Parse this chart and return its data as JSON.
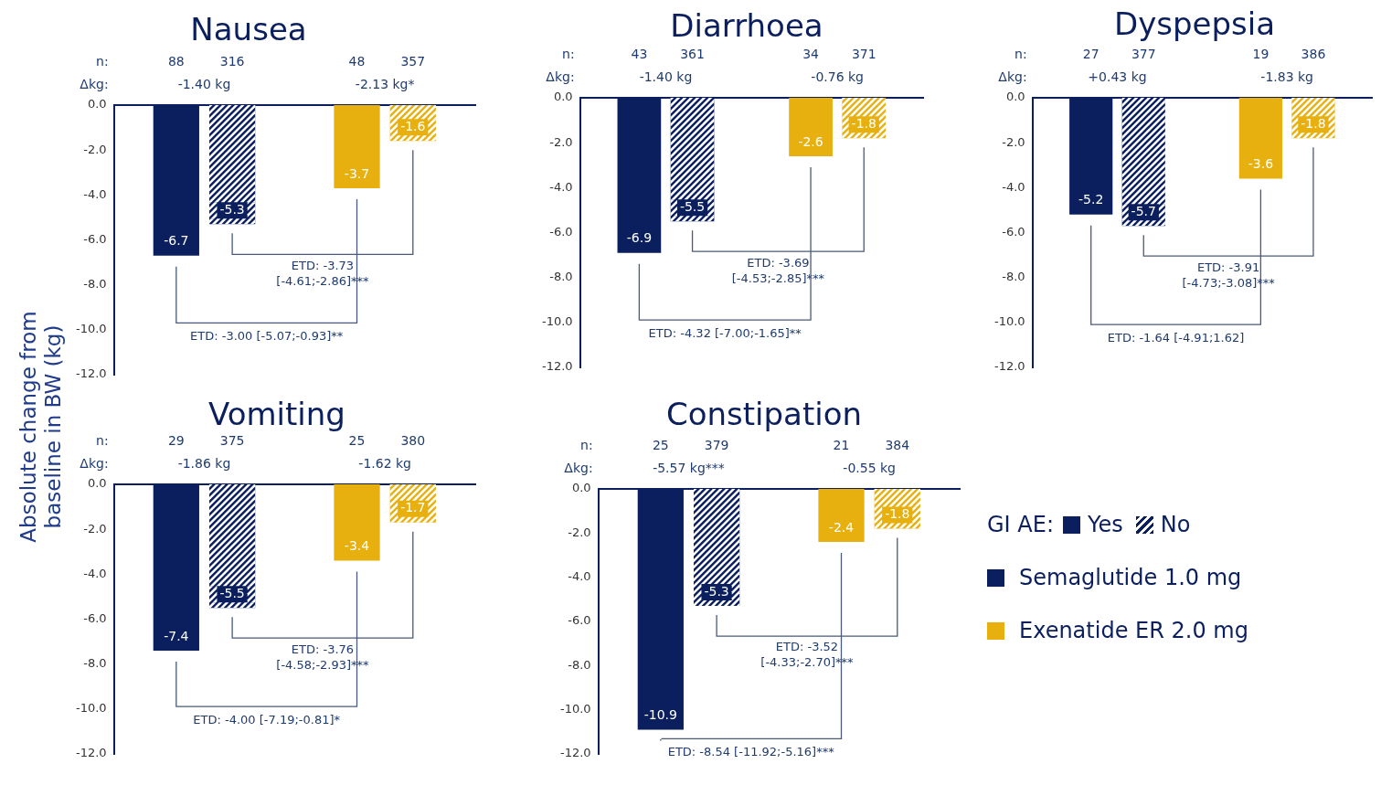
{
  "chart_data": [
    {
      "type": "bar",
      "title": "Nausea",
      "ylabel": "Absolute change from baseline in BW (kg)",
      "categories": [
        null,
        null
      ],
      "series": [
        {
          "colors": [
            "#0b1f5e",
            "#e8b00f"
          ],
          "values": [
            -6.7,
            -3.7
          ]
        },
        {
          "colors": [
            "#0b1f5e",
            "#e8b00f"
          ],
          "values": [
            -5.3,
            -1.6
          ]
        }
      ],
      "ylim": [
        -12,
        0
      ],
      "yticks": [
        {
          "value": 0,
          "label": "0.0"
        },
        {
          "value": -2,
          "label": "-2.0"
        },
        {
          "value": -4,
          "label": "-4.0"
        },
        {
          "value": -6,
          "label": "-6.0"
        },
        {
          "value": -8,
          "label": "-8.0"
        },
        {
          "value": -10,
          "label": "-10.0"
        },
        {
          "value": -12,
          "label": "-12.0"
        }
      ],
      "tick_labels": "y",
      "data_labels": true,
      "annotations": [
        "n:",
        "88",
        "316",
        "48",
        "357",
        "Δkg:",
        "-1.40 kg",
        "-2.13 kg*",
        "ETD: -3.73\n[-4.61;-2.86]***",
        "ETD: -3.00 [-5.07;-0.93]**"
      ]
    },
    {
      "type": "bar",
      "title": "Diarrhoea",
      "categories": [
        null,
        null
      ],
      "series": [
        {
          "colors": [
            "#0b1f5e",
            "#e8b00f"
          ],
          "values": [
            -6.9,
            -2.6
          ]
        },
        {
          "colors": [
            "#0b1f5e",
            "#e8b00f"
          ],
          "values": [
            -5.5,
            -1.8
          ]
        }
      ],
      "ylim": [
        -12,
        0
      ],
      "yticks": [
        {
          "value": 0,
          "label": "0.0"
        },
        {
          "value": -2,
          "label": "-2.0"
        },
        {
          "value": -4,
          "label": "-4.0"
        },
        {
          "value": -6,
          "label": "-6.0"
        },
        {
          "value": -8,
          "label": "-8.0"
        },
        {
          "value": -10,
          "label": "-10.0"
        },
        {
          "value": -12,
          "label": "-12.0"
        }
      ],
      "tick_labels": "y",
      "data_labels": true,
      "annotations": [
        "n:",
        "43",
        "361",
        "34",
        "371",
        "Δkg:",
        "-1.40 kg",
        "-0.76 kg",
        "ETD: -3.69\n[-4.53;-2.85]***",
        "ETD: -4.32 [-7.00;-1.65]**"
      ]
    },
    {
      "type": "bar",
      "title": "Dyspepsia",
      "categories": [
        null,
        null
      ],
      "series": [
        {
          "colors": [
            "#0b1f5e",
            "#e8b00f"
          ],
          "values": [
            -5.2,
            -3.6
          ]
        },
        {
          "colors": [
            "#0b1f5e",
            "#e8b00f"
          ],
          "values": [
            -5.7,
            -1.8
          ]
        }
      ],
      "ylim": [
        -12,
        0
      ],
      "yticks": [
        {
          "value": 0,
          "label": "0.0"
        },
        {
          "value": -2,
          "label": "-2.0"
        },
        {
          "value": -4,
          "label": "-4.0"
        },
        {
          "value": -6,
          "label": "-6.0"
        },
        {
          "value": -8,
          "label": "-8.0"
        },
        {
          "value": -10,
          "label": "-10.0"
        },
        {
          "value": -12,
          "label": "-12.0"
        }
      ],
      "tick_labels": "y",
      "data_labels": true,
      "annotations": [
        "n:",
        "27",
        "377",
        "19",
        "386",
        "Δkg:",
        "+0.43 kg",
        "-1.83 kg",
        "ETD: -3.91\n[-4.73;-3.08]***",
        "ETD: -1.64 [-4.91;1.62]"
      ]
    },
    {
      "type": "bar",
      "title": "Vomiting",
      "categories": [
        null,
        null
      ],
      "series": [
        {
          "colors": [
            "#0b1f5e",
            "#e8b00f"
          ],
          "values": [
            -7.4,
            -3.4
          ]
        },
        {
          "colors": [
            "#0b1f5e",
            "#e8b00f"
          ],
          "values": [
            -5.5,
            -1.7
          ]
        }
      ],
      "ylim": [
        -12,
        0
      ],
      "yticks": [
        {
          "value": 0,
          "label": "0.0"
        },
        {
          "value": -2,
          "label": "-2.0"
        },
        {
          "value": -4,
          "label": "-4.0"
        },
        {
          "value": -6,
          "label": "-6.0"
        },
        {
          "value": -8,
          "label": "-8.0"
        },
        {
          "value": -10,
          "label": "-10.0"
        },
        {
          "value": -12,
          "label": "-12.0"
        }
      ],
      "tick_labels": "y",
      "data_labels": true,
      "annotations": [
        "n:",
        "29",
        "375",
        "25",
        "380",
        "Δkg:",
        "-1.86 kg",
        "-1.62 kg",
        "ETD: -3.76\n[-4.58;-2.93]***",
        "ETD: -4.00 [-7.19;-0.81]*"
      ]
    },
    {
      "type": "bar",
      "title": "Constipation",
      "categories": [
        null,
        null
      ],
      "series": [
        {
          "name": "Yes",
          "colors": [
            "#0b1f5e",
            "#e8b00f"
          ],
          "values": [
            -10.9,
            -2.4
          ]
        },
        {
          "name": "No",
          "colors": [
            "#0b1f5e",
            "#e8b00f"
          ],
          "values": [
            -5.3,
            -1.8
          ]
        }
      ],
      "ylim": [
        -12,
        0
      ],
      "yticks": [
        {
          "value": 0,
          "label": "0.0"
        },
        {
          "value": -2,
          "label": "-2.0"
        },
        {
          "value": -4,
          "label": "-4.0"
        },
        {
          "value": -6,
          "label": "-6.0"
        },
        {
          "value": -8,
          "label": "-8.0"
        },
        {
          "value": -10,
          "label": "-10.0"
        },
        {
          "value": -12,
          "label": "-12.0"
        }
      ],
      "tick_labels": "y",
      "data_labels": true,
      "legend": "right",
      "legend_title": "GI AE:",
      "annotations": [
        "n:",
        "25",
        "379",
        "21",
        "384",
        "Δkg:",
        "-5.57 kg***",
        "-0.55 kg",
        "ETD: -3.52\n[-4.33;-2.70]***",
        "ETD: -8.54 [-11.92;-5.16]***",
        "Semaglutide 1.0 mg",
        "Exenatide ER 2.0 mg"
      ]
    }
  ]
}
